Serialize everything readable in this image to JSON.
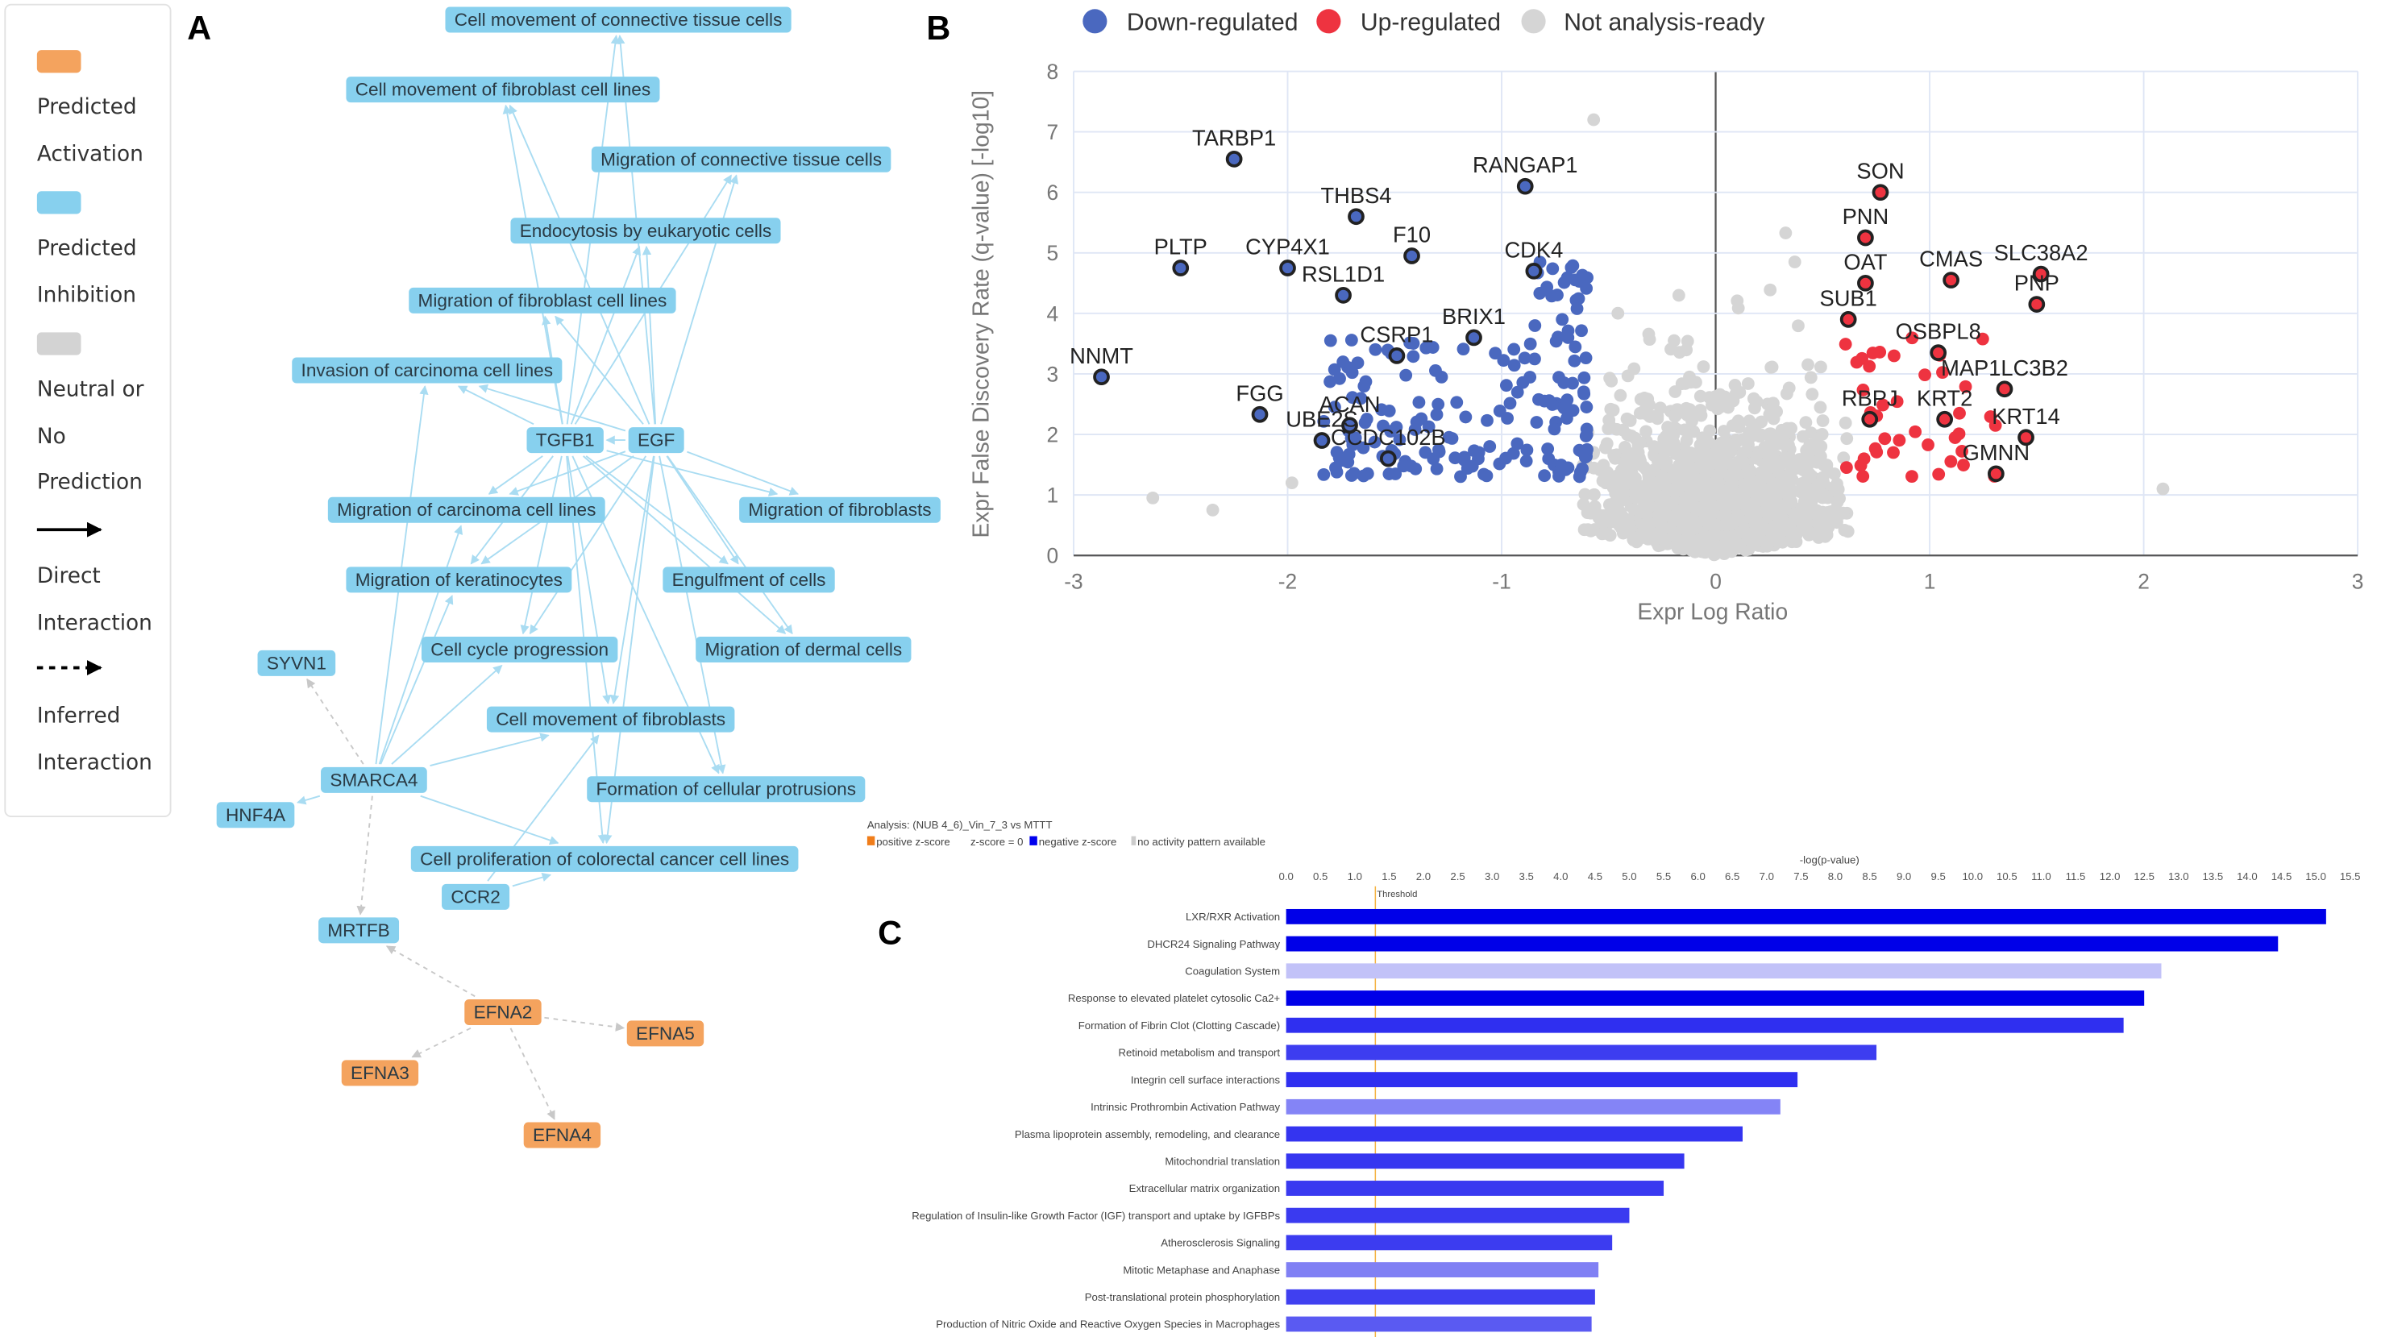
{
  "panels": {
    "a": "A",
    "b": "B",
    "c": "C"
  },
  "legend_a": {
    "items": [
      {
        "color": "#f4a35e",
        "lines": [
          "Predicted",
          "Activation"
        ]
      },
      {
        "color": "#87d0ee",
        "lines": [
          "Predicted",
          "Inhibition"
        ]
      },
      {
        "color": "#d3d3d3",
        "lines": [
          "Neutral or",
          "No",
          "Prediction"
        ]
      },
      {
        "arrow": "solid",
        "lines": [
          "Direct",
          "Interaction"
        ]
      },
      {
        "arrow": "dashed",
        "lines": [
          "Inferred",
          "Interaction"
        ]
      }
    ]
  },
  "network": {
    "colors": {
      "inhibition": "#87d0ee",
      "activation": "#f4a35e",
      "edge": "#a9dcf2",
      "inferred_edge": "#c8c8c8"
    },
    "nodes": [
      {
        "label": "Cell movement of connective tissue cells",
        "type": "inhibition"
      },
      {
        "label": "Cell movement of fibroblast cell lines",
        "type": "inhibition"
      },
      {
        "label": "Migration of connective tissue cells",
        "type": "inhibition"
      },
      {
        "label": "Endocytosis by eukaryotic cells",
        "type": "inhibition"
      },
      {
        "label": "Migration of fibroblast cell lines",
        "type": "inhibition"
      },
      {
        "label": "Invasion of carcinoma cell lines",
        "type": "inhibition"
      },
      {
        "label": "TGFB1",
        "type": "inhibition"
      },
      {
        "label": "EGF",
        "type": "inhibition"
      },
      {
        "label": "Migration of carcinoma cell lines",
        "type": "inhibition"
      },
      {
        "label": "Migration of fibroblasts",
        "type": "inhibition"
      },
      {
        "label": "Migration of keratinocytes",
        "type": "inhibition"
      },
      {
        "label": "Engulfment of cells",
        "type": "inhibition"
      },
      {
        "label": "Cell cycle progression",
        "type": "inhibition"
      },
      {
        "label": "Migration of dermal cells",
        "type": "inhibition"
      },
      {
        "label": "SYVN1",
        "type": "inhibition"
      },
      {
        "label": "Cell movement of fibroblasts",
        "type": "inhibition"
      },
      {
        "label": "SMARCA4",
        "type": "inhibition"
      },
      {
        "label": "Formation of cellular protrusions",
        "type": "inhibition"
      },
      {
        "label": "HNF4A",
        "type": "inhibition"
      },
      {
        "label": "Cell proliferation of colorectal cancer cell lines",
        "type": "inhibition"
      },
      {
        "label": "CCR2",
        "type": "inhibition"
      },
      {
        "label": "MRTFB",
        "type": "inhibition"
      },
      {
        "label": "EFNA2",
        "type": "activation"
      },
      {
        "label": "EFNA5",
        "type": "activation"
      },
      {
        "label": "EFNA3",
        "type": "activation"
      },
      {
        "label": "EFNA4",
        "type": "activation"
      }
    ],
    "edges": [
      [
        6,
        0,
        "direct"
      ],
      [
        6,
        1,
        "direct"
      ],
      [
        6,
        2,
        "direct"
      ],
      [
        6,
        3,
        "direct"
      ],
      [
        6,
        4,
        "direct"
      ],
      [
        6,
        5,
        "direct"
      ],
      [
        6,
        8,
        "direct"
      ],
      [
        6,
        9,
        "direct"
      ],
      [
        6,
        10,
        "direct"
      ],
      [
        6,
        11,
        "direct"
      ],
      [
        6,
        12,
        "direct"
      ],
      [
        6,
        13,
        "direct"
      ],
      [
        6,
        15,
        "direct"
      ],
      [
        6,
        17,
        "direct"
      ],
      [
        6,
        19,
        "direct"
      ],
      [
        7,
        0,
        "direct"
      ],
      [
        7,
        1,
        "direct"
      ],
      [
        7,
        2,
        "direct"
      ],
      [
        7,
        3,
        "direct"
      ],
      [
        7,
        4,
        "direct"
      ],
      [
        7,
        5,
        "direct"
      ],
      [
        7,
        6,
        "direct"
      ],
      [
        7,
        8,
        "direct"
      ],
      [
        7,
        9,
        "direct"
      ],
      [
        7,
        10,
        "direct"
      ],
      [
        7,
        11,
        "direct"
      ],
      [
        7,
        12,
        "direct"
      ],
      [
        7,
        13,
        "direct"
      ],
      [
        7,
        15,
        "direct"
      ],
      [
        7,
        17,
        "direct"
      ],
      [
        7,
        19,
        "direct"
      ],
      [
        16,
        14,
        "inferred"
      ],
      [
        16,
        18,
        "direct"
      ],
      [
        16,
        21,
        "inferred"
      ],
      [
        16,
        5,
        "direct"
      ],
      [
        16,
        8,
        "direct"
      ],
      [
        16,
        10,
        "direct"
      ],
      [
        16,
        12,
        "direct"
      ],
      [
        16,
        15,
        "direct"
      ],
      [
        16,
        19,
        "direct"
      ],
      [
        20,
        19,
        "direct"
      ],
      [
        20,
        15,
        "direct"
      ],
      [
        22,
        23,
        "inferred"
      ],
      [
        22,
        24,
        "inferred"
      ],
      [
        22,
        25,
        "inferred"
      ],
      [
        22,
        21,
        "inferred"
      ]
    ]
  },
  "chart_data": [
    {
      "type": "scatter",
      "title": "",
      "xlabel": "Expr Log Ratio",
      "ylabel": "Expr False Discovery Rate (q-value) [-log10]",
      "xlim": [
        -3,
        3
      ],
      "ylim": [
        0,
        8
      ],
      "xticks": [
        "-3",
        "-2",
        "-1",
        "0",
        "1",
        "2",
        "3"
      ],
      "yticks": [
        "0",
        "1",
        "2",
        "3",
        "4",
        "5",
        "6",
        "7",
        "8"
      ],
      "grid": true,
      "legend_position": "top",
      "legend": [
        {
          "name": "Down-regulated",
          "color": "#4a68bf"
        },
        {
          "name": "Up-regulated",
          "color": "#ee3340"
        },
        {
          "name": "Not analysis-ready",
          "color": "#d5d5d5"
        }
      ],
      "labeled_points": [
        {
          "gene": "TARBP1",
          "x": -2.25,
          "y": 6.55,
          "group": "down"
        },
        {
          "gene": "RANGAP1",
          "x": -0.89,
          "y": 6.1,
          "group": "down"
        },
        {
          "gene": "THBS4",
          "x": -1.68,
          "y": 5.6,
          "group": "down"
        },
        {
          "gene": "F10",
          "x": -1.42,
          "y": 4.95,
          "group": "down"
        },
        {
          "gene": "PLTP",
          "x": -2.5,
          "y": 4.75,
          "group": "down"
        },
        {
          "gene": "CYP4X1",
          "x": -2.0,
          "y": 4.75,
          "group": "down"
        },
        {
          "gene": "RSL1D1",
          "x": -1.74,
          "y": 4.3,
          "group": "down"
        },
        {
          "gene": "CDK4",
          "x": -0.85,
          "y": 4.7,
          "group": "down"
        },
        {
          "gene": "BRIX1",
          "x": -1.13,
          "y": 3.6,
          "group": "down"
        },
        {
          "gene": "CSRP1",
          "x": -1.49,
          "y": 3.3,
          "group": "down"
        },
        {
          "gene": "NNMT",
          "x": -2.87,
          "y": 2.95,
          "group": "down"
        },
        {
          "gene": "FGG",
          "x": -2.13,
          "y": 2.33,
          "group": "down"
        },
        {
          "gene": "ACAN",
          "x": -1.71,
          "y": 2.15,
          "group": "down"
        },
        {
          "gene": "UBE2S",
          "x": -1.84,
          "y": 1.9,
          "group": "down"
        },
        {
          "gene": "CCDC102B",
          "x": -1.53,
          "y": 1.6,
          "group": "down"
        },
        {
          "gene": "SON",
          "x": 0.77,
          "y": 6.0,
          "group": "up"
        },
        {
          "gene": "PNN",
          "x": 0.7,
          "y": 5.25,
          "group": "up"
        },
        {
          "gene": "OAT",
          "x": 0.7,
          "y": 4.5,
          "group": "up"
        },
        {
          "gene": "SUB1",
          "x": 0.62,
          "y": 3.9,
          "group": "up"
        },
        {
          "gene": "CMAS",
          "x": 1.1,
          "y": 4.55,
          "group": "up"
        },
        {
          "gene": "SLC38A2",
          "x": 1.52,
          "y": 4.65,
          "group": "up"
        },
        {
          "gene": "PNP",
          "x": 1.5,
          "y": 4.15,
          "group": "up"
        },
        {
          "gene": "OSBPL8",
          "x": 1.04,
          "y": 3.35,
          "group": "up"
        },
        {
          "gene": "MAP1LC3B2",
          "x": 1.35,
          "y": 2.75,
          "group": "up"
        },
        {
          "gene": "RBPJ",
          "x": 0.72,
          "y": 2.25,
          "group": "up"
        },
        {
          "gene": "KRT2",
          "x": 1.07,
          "y": 2.25,
          "group": "up"
        },
        {
          "gene": "KRT14",
          "x": 1.45,
          "y": 1.95,
          "group": "up"
        },
        {
          "gene": "GMNN",
          "x": 1.31,
          "y": 1.35,
          "group": "up"
        }
      ],
      "outlier_points": [
        {
          "x": -0.57,
          "y": 7.2,
          "group": "na"
        },
        {
          "x": 2.09,
          "y": 1.1,
          "group": "na"
        },
        {
          "x": -2.63,
          "y": 0.95,
          "group": "na"
        },
        {
          "x": -2.35,
          "y": 0.75,
          "group": "na"
        },
        {
          "x": -1.98,
          "y": 1.2,
          "group": "na"
        }
      ]
    },
    {
      "type": "bar",
      "orientation": "horizontal",
      "title": "Analysis: (NUB 4_6)_Vin_7_3 vs MTTT",
      "legend": [
        {
          "name": "positive z-score",
          "color": "#f07d1a"
        },
        {
          "name": "z-score = 0",
          "color": "#ffffff"
        },
        {
          "name": "negative z-score",
          "color": "#0000ee"
        },
        {
          "name": "no activity pattern available",
          "color": "#cccccc"
        }
      ],
      "xlabel": "-log(p-value)",
      "xlim": [
        0,
        15.5
      ],
      "xticks": [
        "0.0",
        "0.5",
        "1.0",
        "1.5",
        "2.0",
        "2.5",
        "3.0",
        "3.5",
        "4.0",
        "4.5",
        "5.0",
        "5.5",
        "6.0",
        "6.5",
        "7.0",
        "7.5",
        "8.0",
        "8.5",
        "9.0",
        "9.5",
        "10.0",
        "10.5",
        "11.0",
        "11.5",
        "12.0",
        "12.5",
        "13.0",
        "13.5",
        "14.0",
        "14.5",
        "15.0",
        "15.5"
      ],
      "threshold": {
        "label": "Threshold",
        "value": 1.3,
        "color": "#f5b342"
      },
      "categories": [
        "LXR/RXR Activation",
        "DHCR24 Signaling Pathway",
        "Coagulation System",
        "Response to elevated platelet cytosolic Ca2+",
        "Formation of Fibrin Clot (Clotting Cascade)",
        "Retinoid metabolism and transport",
        "Integrin cell surface interactions",
        "Intrinsic Prothrombin Activation Pathway",
        "Plasma lipoprotein assembly, remodeling, and clearance",
        "Mitochondrial translation",
        "Extracellular matrix organization",
        "Regulation of Insulin-like Growth Factor (IGF) transport and uptake by IGFBPs",
        "Atherosclerosis Signaling",
        "Mitotic Metaphase and Anaphase",
        "Post-translational protein phosphorylation",
        "Production of Nitric Oxide and Reactive Oxygen Species in Macrophages"
      ],
      "values": [
        15.15,
        14.45,
        12.75,
        12.5,
        12.2,
        8.6,
        7.45,
        7.2,
        6.65,
        5.8,
        5.5,
        5.0,
        4.75,
        4.55,
        4.5,
        4.45
      ],
      "colors": [
        "#0000e8",
        "#0000e8",
        "#c2c2f8",
        "#0000e8",
        "#2f2ff0",
        "#3d3df0",
        "#2f2ff0",
        "#8484f6",
        "#3434f0",
        "#3636f0",
        "#3a3af0",
        "#3a3af0",
        "#3c3cf0",
        "#8080f4",
        "#4040f0",
        "#5a5af2"
      ]
    }
  ]
}
